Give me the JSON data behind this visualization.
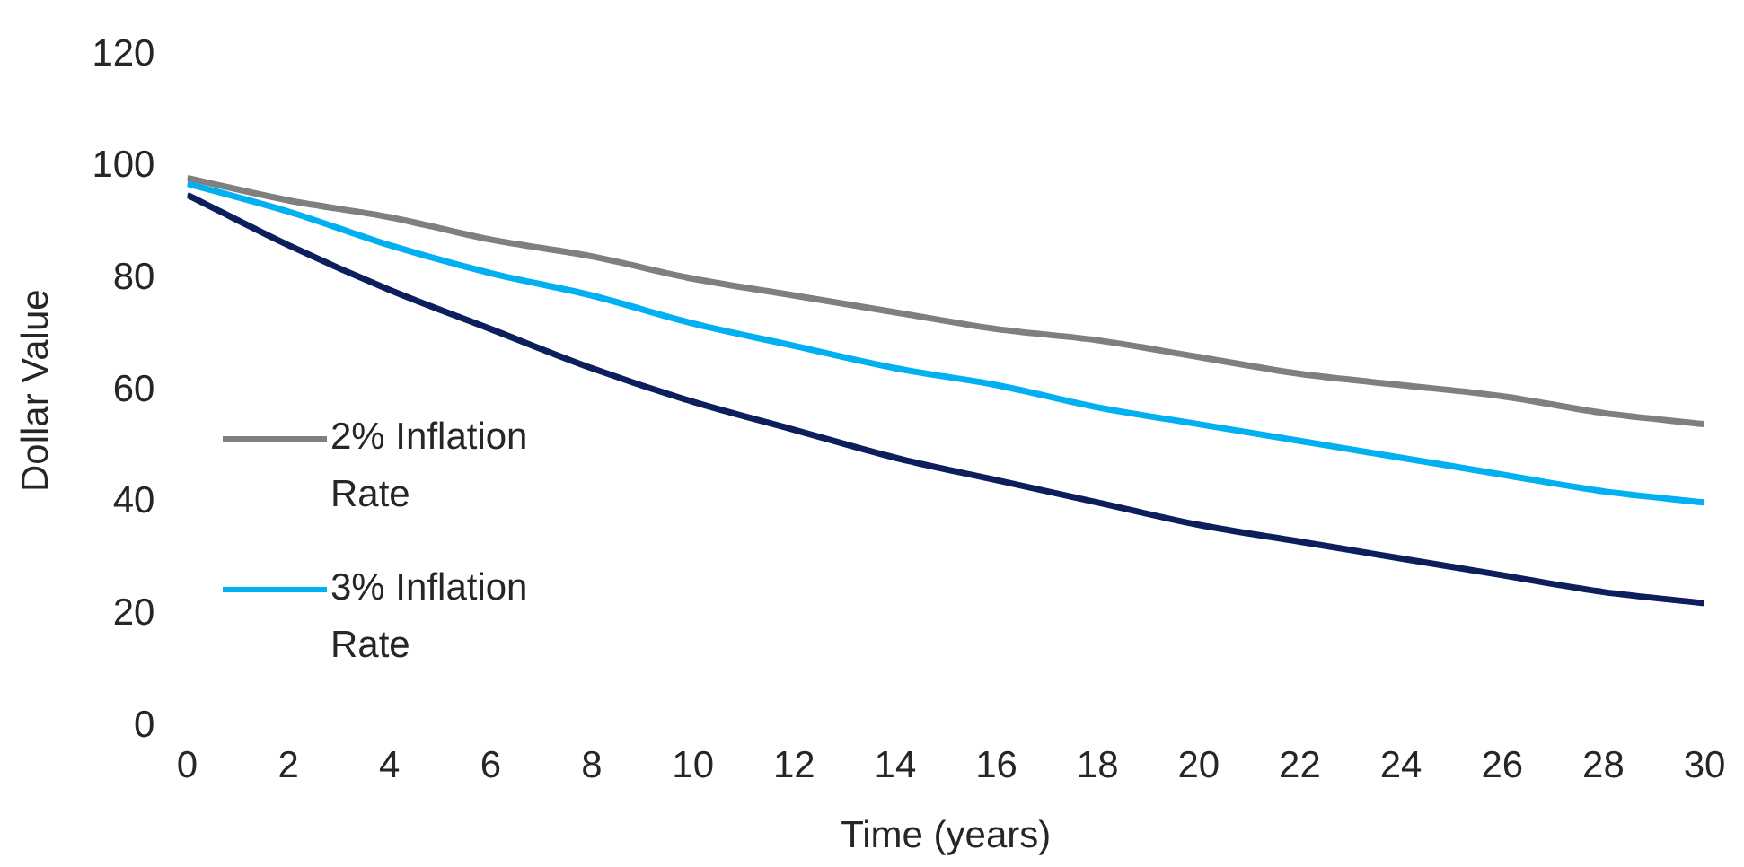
{
  "chart_data": {
    "type": "line",
    "xlabel": "Time (years)",
    "ylabel": "Dollar Value",
    "x": [
      0,
      2,
      4,
      6,
      8,
      10,
      12,
      14,
      16,
      18,
      20,
      22,
      24,
      26,
      28,
      30
    ],
    "series": [
      {
        "name": "2% Inflation Rate",
        "color": "#7f7f7f",
        "values": [
          98,
          94,
          91,
          87,
          84,
          80,
          77,
          74,
          71,
          69,
          66,
          63,
          61,
          59,
          56,
          54
        ]
      },
      {
        "name": "3% Inflation Rate",
        "color": "#00b0f0",
        "values": [
          97,
          92,
          86,
          81,
          77,
          72,
          68,
          64,
          61,
          57,
          54,
          51,
          48,
          45,
          42,
          40
        ]
      },
      {
        "color": "#0c1f5c",
        "values": [
          95,
          86,
          78,
          71,
          64,
          58,
          53,
          48,
          44,
          40,
          36,
          33,
          30,
          27,
          24,
          22
        ]
      }
    ],
    "xlim": [
      0,
      30
    ],
    "xticks": [
      0,
      2,
      4,
      6,
      8,
      10,
      12,
      14,
      16,
      18,
      20,
      22,
      24,
      26,
      28,
      30
    ],
    "ylim": [
      0,
      120
    ],
    "yticks": [
      0,
      20,
      40,
      60,
      80,
      100,
      120
    ],
    "grid": false,
    "legend": "left",
    "marker": "none",
    "line_style": "solid"
  }
}
